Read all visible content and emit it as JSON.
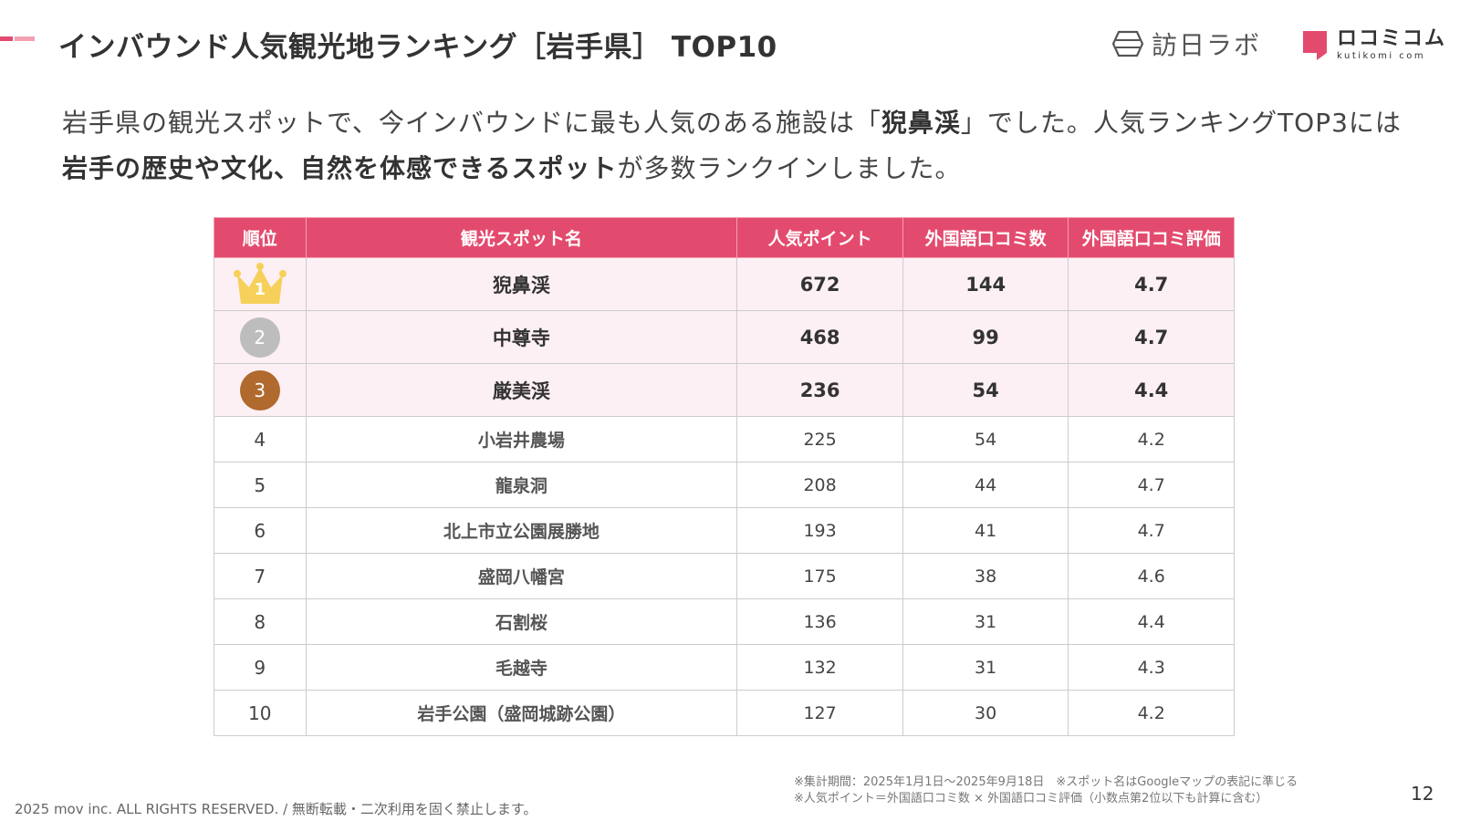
{
  "title": "インバウンド人気観光地ランキング［岩手県］ TOP10",
  "logos": {
    "lab_text": "訪日ラボ",
    "kuchikomi_jp": "ロコミコム",
    "kuchikomi_en": "kutikomi com"
  },
  "lead": {
    "part1": "岩手県の観光スポットで、今インバウンドに最も人気のある施設は「",
    "highlight1": "猊鼻渓",
    "part2": "」でした。人気ランキングTOP3には",
    "highlight2": "岩手の歴史や文化、自然を体感できるスポット",
    "part3": "が多数ランクインしました。"
  },
  "table": {
    "headers": [
      "順位",
      "観光スポット名",
      "人気ポイント",
      "外国語口コミ数",
      "外国語口コミ評価"
    ],
    "rows": [
      {
        "rank": "1",
        "name": "猊鼻渓",
        "points": "672",
        "reviews": "144",
        "rating": "4.7"
      },
      {
        "rank": "2",
        "name": "中尊寺",
        "points": "468",
        "reviews": "99",
        "rating": "4.7"
      },
      {
        "rank": "3",
        "name": "厳美渓",
        "points": "236",
        "reviews": "54",
        "rating": "4.4"
      },
      {
        "rank": "4",
        "name": "小岩井農場",
        "points": "225",
        "reviews": "54",
        "rating": "4.2"
      },
      {
        "rank": "5",
        "name": "龍泉洞",
        "points": "208",
        "reviews": "44",
        "rating": "4.7"
      },
      {
        "rank": "6",
        "name": "北上市立公園展勝地",
        "points": "193",
        "reviews": "41",
        "rating": "4.7"
      },
      {
        "rank": "7",
        "name": "盛岡八幡宮",
        "points": "175",
        "reviews": "38",
        "rating": "4.6"
      },
      {
        "rank": "8",
        "name": "石割桜",
        "points": "136",
        "reviews": "31",
        "rating": "4.4"
      },
      {
        "rank": "9",
        "name": "毛越寺",
        "points": "132",
        "reviews": "31",
        "rating": "4.3"
      },
      {
        "rank": "10",
        "name": "岩手公園（盛岡城跡公園）",
        "points": "127",
        "reviews": "30",
        "rating": "4.2"
      }
    ]
  },
  "notes": {
    "line1": "※集計期間：2025年1月1日〜2025年9月18日　※スポット名はGoogleマップの表記に準じる",
    "line2": "※人気ポイント＝外国語口コミ数 × 外国語口コミ評価（小数点第2位以下も計算に含む）"
  },
  "copyright": "2025 mov inc. ALL RIGHTS RESERVED. / 無断転載・二次利用を固く禁止します。",
  "page_number": "12",
  "colors": {
    "accent": "#e34b6e",
    "accent_light": "#f2a0b2",
    "top_row_bg": "#fdf0f4",
    "gold": "#f6d05a",
    "silver": "#bdbdbd",
    "bronze": "#b06a2e"
  }
}
